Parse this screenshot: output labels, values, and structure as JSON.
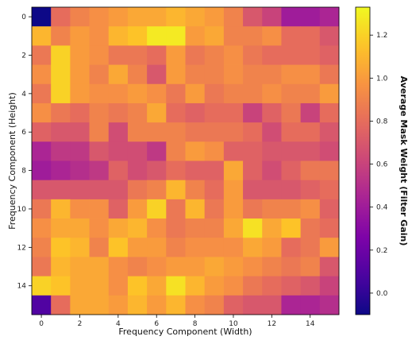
{
  "chart_data": {
    "type": "heatmap",
    "title": "",
    "xlabel": "Frequency Component (Width)",
    "ylabel": "Frequency Component (Height)",
    "colorbar_label": "Average Mask Weight (Filter Gain)",
    "colormap": "plasma",
    "grid": false,
    "x_ticks": [
      "0",
      "2",
      "4",
      "6",
      "8",
      "10",
      "12",
      "14"
    ],
    "y_ticks": [
      "0",
      "2",
      "4",
      "6",
      "8",
      "10",
      "12",
      "14"
    ],
    "colorbar_ticks": [
      "0.0",
      "0.2",
      "0.4",
      "0.6",
      "0.8",
      "1.0",
      "1.2"
    ],
    "x": [
      0,
      1,
      2,
      3,
      4,
      5,
      6,
      7,
      8,
      9,
      10,
      11,
      12,
      13,
      14,
      15
    ],
    "y": [
      0,
      1,
      2,
      3,
      4,
      5,
      6,
      7,
      8,
      9,
      10,
      11,
      12,
      13,
      14,
      15
    ],
    "vmin": -0.1,
    "vmax": 1.33,
    "values": [
      [
        -0.1,
        0.8,
        0.9,
        0.95,
        1.0,
        1.05,
        1.05,
        1.1,
        1.05,
        1.0,
        0.9,
        0.7,
        0.6,
        0.4,
        0.4,
        0.45
      ],
      [
        1.1,
        0.9,
        1.0,
        0.95,
        1.1,
        1.15,
        1.28,
        1.28,
        1.0,
        1.05,
        0.9,
        0.9,
        0.95,
        0.8,
        0.8,
        0.7
      ],
      [
        0.85,
        1.2,
        1.0,
        0.95,
        0.85,
        0.85,
        0.8,
        1.0,
        0.85,
        0.9,
        0.95,
        0.85,
        0.8,
        0.8,
        0.8,
        0.75
      ],
      [
        0.95,
        1.2,
        1.0,
        0.9,
        1.05,
        0.9,
        0.7,
        1.0,
        0.9,
        0.9,
        0.95,
        0.9,
        0.9,
        0.95,
        0.95,
        0.85
      ],
      [
        0.85,
        1.2,
        1.0,
        0.95,
        0.95,
        1.0,
        0.95,
        0.85,
        1.0,
        0.85,
        0.9,
        0.9,
        0.95,
        0.9,
        0.9,
        1.0
      ],
      [
        0.95,
        0.85,
        0.8,
        0.9,
        0.85,
        0.9,
        1.05,
        0.8,
        0.75,
        0.8,
        0.8,
        0.6,
        0.75,
        0.85,
        0.6,
        0.8
      ],
      [
        0.75,
        0.7,
        0.7,
        0.9,
        0.65,
        0.9,
        0.9,
        0.9,
        0.85,
        0.85,
        0.85,
        0.8,
        0.65,
        0.8,
        0.8,
        0.7
      ],
      [
        0.45,
        0.55,
        0.55,
        0.7,
        0.65,
        0.65,
        0.55,
        0.9,
        1.0,
        0.95,
        0.75,
        0.75,
        0.7,
        0.7,
        0.7,
        0.65
      ],
      [
        0.4,
        0.45,
        0.5,
        0.55,
        0.75,
        0.65,
        0.7,
        0.8,
        0.75,
        0.75,
        1.05,
        0.75,
        0.65,
        0.75,
        0.85,
        0.85
      ],
      [
        0.7,
        0.7,
        0.7,
        0.7,
        0.7,
        0.85,
        0.9,
        1.1,
        0.9,
        0.8,
        1.0,
        0.7,
        0.7,
        0.7,
        0.75,
        0.8
      ],
      [
        0.85,
        1.1,
        0.95,
        0.95,
        0.75,
        1.0,
        1.2,
        0.85,
        1.1,
        0.85,
        1.0,
        0.85,
        0.9,
        0.9,
        0.95,
        0.75
      ],
      [
        0.95,
        1.05,
        1.05,
        0.95,
        1.05,
        1.1,
        0.95,
        0.85,
        0.9,
        0.9,
        1.05,
        1.25,
        1.05,
        1.15,
        0.85,
        0.8
      ],
      [
        0.9,
        1.15,
        1.1,
        0.9,
        1.15,
        1.0,
        1.0,
        0.9,
        0.95,
        0.95,
        0.95,
        1.05,
        1.0,
        0.8,
        0.85,
        1.0
      ],
      [
        0.85,
        1.1,
        1.05,
        1.05,
        0.95,
        0.9,
        0.95,
        1.0,
        1.0,
        1.05,
        1.0,
        0.95,
        0.9,
        0.85,
        0.9,
        0.7
      ],
      [
        1.2,
        1.15,
        1.05,
        1.05,
        0.95,
        1.15,
        1.05,
        1.25,
        1.1,
        1.0,
        0.95,
        0.85,
        0.8,
        0.75,
        0.7,
        0.6
      ],
      [
        0.1,
        0.8,
        1.05,
        1.05,
        1.0,
        1.1,
        1.0,
        1.1,
        0.95,
        0.9,
        0.75,
        0.7,
        0.7,
        0.45,
        0.45,
        0.5
      ]
    ]
  }
}
